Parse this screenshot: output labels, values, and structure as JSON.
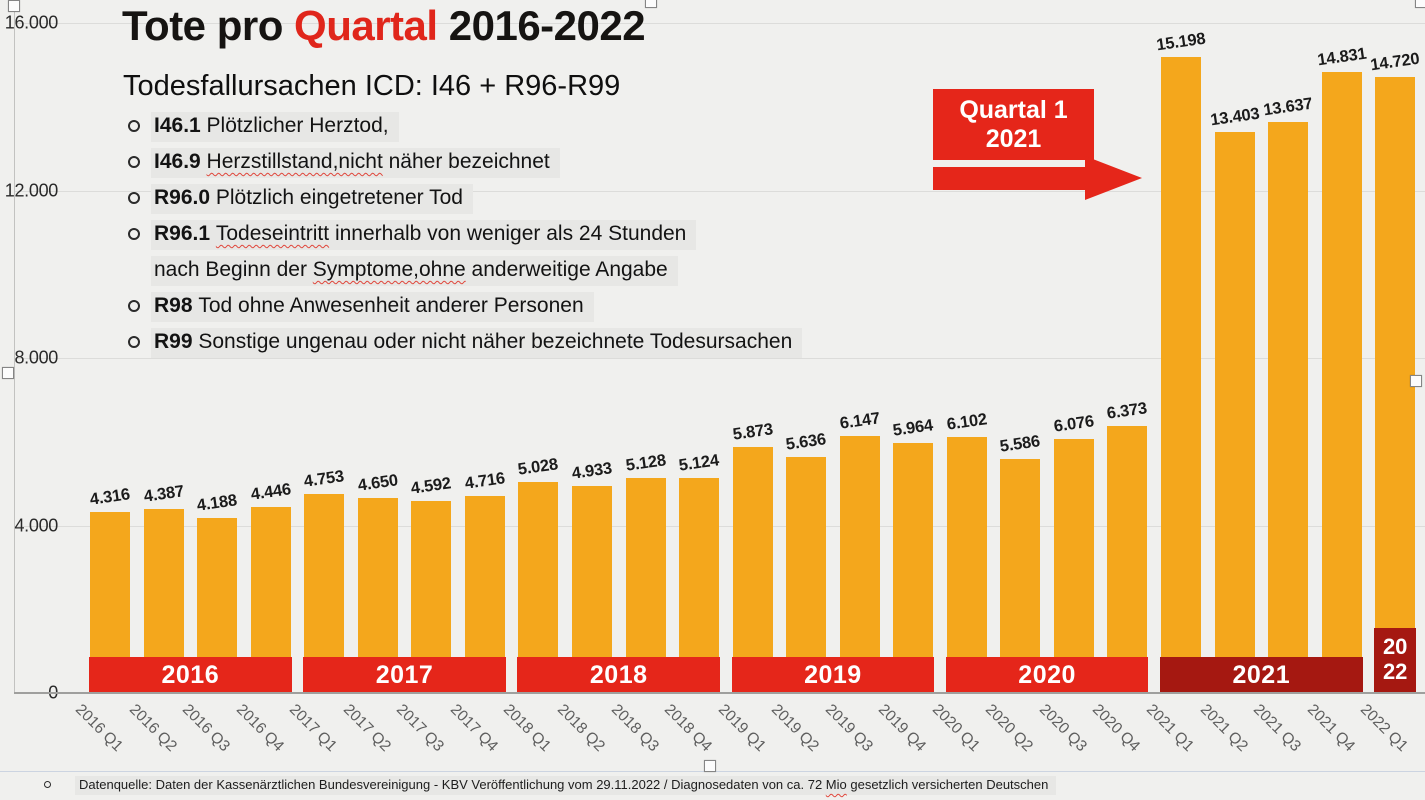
{
  "header": {
    "title_pre": "Tote pro ",
    "title_highlight": "Quartal",
    "title_post": " 2016-2022",
    "subtitle": "Todesfallursachen ICD: I46 + R96-R99"
  },
  "icd_list": {
    "items": [
      {
        "bullet": true,
        "segments": [
          {
            "t": "I46.1 ",
            "bold": true
          },
          {
            "t": "Plötzlicher Herztod,"
          }
        ]
      },
      {
        "bullet": true,
        "segments": [
          {
            "t": "I46.9 ",
            "bold": true
          },
          {
            "t": "Herzstillstand,nicht",
            "wavy": true
          },
          {
            "t": " näher bezeichnet"
          }
        ]
      },
      {
        "bullet": true,
        "segments": [
          {
            "t": "R96.0 ",
            "bold": true
          },
          {
            "t": "Plötzlich eingetretener Tod"
          }
        ]
      },
      {
        "bullet": true,
        "segments": [
          {
            "t": "R96.1 ",
            "bold": true
          },
          {
            "t": "Todeseintritt",
            "wavy": true
          },
          {
            "t": " innerhalb von weniger als 24 Stunden"
          }
        ]
      },
      {
        "bullet": false,
        "segments": [
          {
            "t": "nach Beginn der "
          },
          {
            "t": "Symptome,ohne",
            "wavy": true
          },
          {
            "t": " anderweitige Angabe"
          }
        ]
      },
      {
        "bullet": true,
        "segments": [
          {
            "t": "R98 ",
            "bold": true
          },
          {
            "t": "Tod ohne Anwesenheit anderer Personen"
          }
        ]
      },
      {
        "bullet": true,
        "segments": [
          {
            "t": "R99 ",
            "bold": true
          },
          {
            "t": "Sonstige ungenau oder nicht näher bezeichnete Todesursachen"
          }
        ]
      }
    ]
  },
  "callout": {
    "line1": "Quartal 1",
    "line2": "2021"
  },
  "footer": {
    "segments": [
      {
        "t": "Datenquelle: Daten der Kassenärztlichen Bundesvereinigung - KBV Veröffentlichung vom 29.11.2022 / Diagnosedaten von ca. 72 "
      },
      {
        "t": "Mio",
        "wavy": true
      },
      {
        "t": " gesetzlich versicherten Deutschen"
      }
    ]
  },
  "colors": {
    "background": "#f0f0ee",
    "bar": "#f4a71c",
    "red": "#e5261a",
    "dark_red": "#a51811",
    "title_red": "#e0261b",
    "value_label": "#1b1b1b",
    "x_label": "#5e5e5e"
  },
  "chart_data": {
    "type": "bar",
    "title": "Tote pro Quartal 2016-2022",
    "subtitle": "Todesfallursachen ICD: I46 + R96-R99",
    "xlabel": "",
    "ylabel": "",
    "ylim": [
      0,
      16000
    ],
    "grid": "horizontal",
    "legend": "none",
    "categories": [
      "2016 Q1",
      "2016 Q2",
      "2016 Q3",
      "2016 Q4",
      "2017 Q1",
      "2017 Q2",
      "2017 Q3",
      "2017 Q4",
      "2018 Q1",
      "2018 Q2",
      "2018 Q3",
      "2018 Q4",
      "2019 Q1",
      "2019 Q2",
      "2019 Q3",
      "2019 Q4",
      "2020 Q1",
      "2020 Q2",
      "2020 Q3",
      "2020 Q4",
      "2021 Q1",
      "2021 Q2",
      "2021 Q3",
      "2021 Q4",
      "2022 Q1"
    ],
    "values": [
      4316,
      4387,
      4188,
      4446,
      4753,
      4650,
      4592,
      4716,
      5028,
      4933,
      5128,
      5124,
      5873,
      5636,
      6147,
      5964,
      6102,
      5586,
      6076,
      6373,
      15198,
      13403,
      13637,
      14831,
      14720
    ],
    "value_labels": [
      "4.316",
      "4.387",
      "4.188",
      "4.446",
      "4.753",
      "4.650",
      "4.592",
      "4.716",
      "5.028",
      "4.933",
      "5.128",
      "5.124",
      "5.873",
      "5.636",
      "6.147",
      "5.964",
      "6.102",
      "5.586",
      "6.076",
      "6.373",
      "15.198",
      "13.403",
      "13.637",
      "14.831",
      "14.720"
    ],
    "y_ticks": [
      {
        "label": "16.000",
        "value": 16000
      },
      {
        "label": "12.000",
        "value": 12000
      },
      {
        "label": "8.000",
        "value": 8000
      },
      {
        "label": "4.000",
        "value": 4000
      },
      {
        "label": "0",
        "value": 0
      }
    ],
    "year_bands": [
      {
        "label": "2016",
        "start": 0,
        "count": 4,
        "color": "#e5261a"
      },
      {
        "label": "2017",
        "start": 4,
        "count": 4,
        "color": "#e5261a"
      },
      {
        "label": "2018",
        "start": 8,
        "count": 4,
        "color": "#e5261a"
      },
      {
        "label": "2019",
        "start": 12,
        "count": 4,
        "color": "#e5261a"
      },
      {
        "label": "2020",
        "start": 16,
        "count": 4,
        "color": "#e5261a"
      },
      {
        "label": "2021",
        "start": 20,
        "count": 4,
        "color": "#a51811"
      },
      {
        "label": "2022",
        "lines": [
          "20",
          "22"
        ],
        "start": 24,
        "count": 1,
        "color": "#a51811"
      }
    ],
    "annotation": {
      "text": "Quartal 1 2021",
      "points_to": "2021 Q1"
    }
  }
}
